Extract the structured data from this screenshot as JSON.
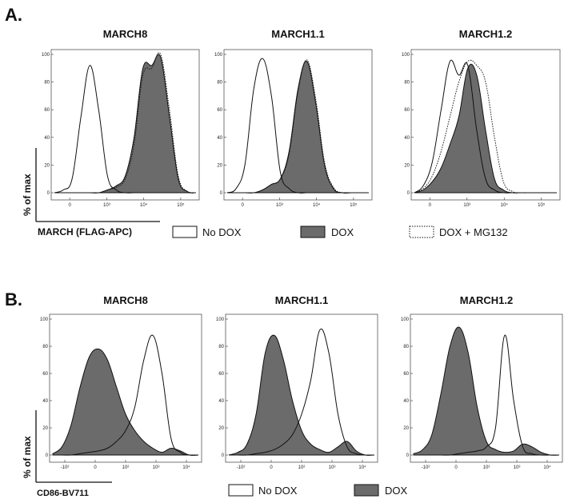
{
  "figure": {
    "panel_a": {
      "label": "A.",
      "ylabel": "% of max",
      "xlabel": "MARCH (FLAG-APC)"
    },
    "panel_b": {
      "label": "B.",
      "ylabel": "% of max",
      "xlabel": "CD86-BV711"
    }
  },
  "legend_a": [
    {
      "label": "No DOX",
      "style": "open"
    },
    {
      "label": "DOX",
      "style": "filled"
    },
    {
      "label": "DOX + MG132",
      "style": "dotted"
    }
  ],
  "legend_b": [
    {
      "label": "No DOX",
      "style": "open"
    },
    {
      "label": "DOX",
      "style": "filled"
    }
  ],
  "colors": {
    "filled": "#6b6b6b",
    "line": "#111111",
    "background": "#ffffff"
  },
  "chart_data": [
    {
      "type": "area",
      "panel": "A",
      "title": "MARCH8",
      "ylim": [
        0,
        100
      ],
      "y_ticks": [
        "0",
        "20",
        "40",
        "60",
        "80",
        "100"
      ],
      "x_ticks": [
        "0",
        "10³",
        "10⁴",
        "10⁵"
      ],
      "x": [
        -0.5,
        -0.25,
        0.0,
        0.25,
        0.5,
        0.75,
        1.0,
        1.25,
        1.5,
        1.75,
        2.0,
        2.25,
        2.5,
        2.75,
        3.0,
        3.25,
        3.5
      ],
      "series": [
        {
          "name": "No DOX",
          "style": "open",
          "values": [
            0,
            2,
            10,
            55,
            92,
            60,
            12,
            2,
            0,
            0,
            0,
            0,
            0,
            0,
            0,
            0,
            0
          ]
        },
        {
          "name": "DOX",
          "style": "filled",
          "values": [
            0,
            0,
            0,
            0,
            0,
            0,
            2,
            5,
            12,
            40,
            90,
            92,
            98,
            55,
            10,
            1,
            0
          ]
        },
        {
          "name": "DOX + MG132",
          "style": "dotted",
          "values": [
            0,
            0,
            0,
            0,
            0,
            0,
            2,
            4,
            10,
            35,
            85,
            90,
            100,
            60,
            12,
            1,
            0
          ]
        }
      ]
    },
    {
      "type": "area",
      "panel": "A",
      "title": "MARCH1.1",
      "ylim": [
        0,
        100
      ],
      "y_ticks": [
        "0",
        "20",
        "40",
        "60",
        "80",
        "100"
      ],
      "x_ticks": [
        "0",
        "10³",
        "10⁴",
        "10⁵"
      ],
      "x": [
        -0.5,
        -0.25,
        0.0,
        0.25,
        0.5,
        0.75,
        1.0,
        1.25,
        1.5,
        1.75,
        2.0,
        2.25,
        2.5,
        2.75,
        3.0,
        3.25,
        3.5
      ],
      "series": [
        {
          "name": "No DOX",
          "style": "open",
          "values": [
            0,
            3,
            20,
            75,
            97,
            70,
            15,
            3,
            0,
            0,
            0,
            0,
            0,
            0,
            0,
            0,
            0
          ]
        },
        {
          "name": "DOX",
          "style": "filled",
          "values": [
            0,
            0,
            0,
            0,
            2,
            6,
            10,
            30,
            75,
            95,
            65,
            20,
            3,
            0,
            0,
            0,
            0
          ]
        },
        {
          "name": "DOX + MG132",
          "style": "dotted",
          "values": [
            0,
            0,
            0,
            0,
            2,
            6,
            10,
            28,
            73,
            96,
            68,
            22,
            4,
            0,
            0,
            0,
            0
          ]
        }
      ]
    },
    {
      "type": "area",
      "panel": "A",
      "title": "MARCH1.2",
      "ylim": [
        0,
        100
      ],
      "y_ticks": [
        "0",
        "20",
        "40",
        "60",
        "80",
        "100"
      ],
      "x_ticks": [
        "0",
        "10³",
        "10⁴",
        "10⁵"
      ],
      "x": [
        -0.5,
        -0.25,
        0.0,
        0.25,
        0.5,
        0.75,
        1.0,
        1.25,
        1.5,
        1.75,
        2.0,
        2.25,
        2.5,
        2.75,
        3.0,
        3.25,
        3.5
      ],
      "series": [
        {
          "name": "No DOX",
          "style": "open",
          "values": [
            0,
            5,
            22,
            60,
            95,
            85,
            92,
            45,
            10,
            2,
            0,
            0,
            0,
            0,
            0,
            0,
            0
          ]
        },
        {
          "name": "DOX",
          "style": "filled",
          "values": [
            0,
            2,
            8,
            18,
            35,
            55,
            90,
            85,
            45,
            10,
            2,
            0,
            0,
            0,
            0,
            0,
            0
          ]
        },
        {
          "name": "DOX + MG132",
          "style": "dotted",
          "values": [
            0,
            3,
            12,
            30,
            55,
            80,
            95,
            92,
            80,
            40,
            8,
            1,
            0,
            0,
            0,
            0,
            0
          ]
        }
      ]
    },
    {
      "type": "area",
      "panel": "B",
      "title": "MARCH8",
      "ylim": [
        0,
        100
      ],
      "y_ticks": [
        "0",
        "20",
        "40",
        "60",
        "80",
        "100"
      ],
      "x_ticks": [
        "-10²",
        "0",
        "10²",
        "10³",
        "10⁴"
      ],
      "x": [
        -1.0,
        -0.75,
        -0.5,
        -0.25,
        0.0,
        0.25,
        0.5,
        0.75,
        1.0,
        1.25,
        1.5,
        1.75,
        2.0,
        2.25,
        2.5,
        2.75,
        3.0
      ],
      "series": [
        {
          "name": "DOX",
          "style": "filled",
          "values": [
            1,
            6,
            22,
            50,
            72,
            78,
            70,
            50,
            30,
            18,
            10,
            5,
            2,
            5,
            3,
            0,
            0
          ]
        },
        {
          "name": "No DOX",
          "style": "open",
          "values": [
            0,
            0,
            0,
            1,
            2,
            3,
            5,
            10,
            18,
            35,
            70,
            88,
            60,
            12,
            2,
            0,
            0
          ]
        }
      ]
    },
    {
      "type": "area",
      "panel": "B",
      "title": "MARCH1.1",
      "ylim": [
        0,
        100
      ],
      "y_ticks": [
        "0",
        "20",
        "40",
        "60",
        "80",
        "100"
      ],
      "x_ticks": [
        "-10²",
        "0",
        "10²",
        "10³",
        "10⁴"
      ],
      "x": [
        -1.0,
        -0.75,
        -0.5,
        -0.25,
        0.0,
        0.25,
        0.5,
        0.75,
        1.0,
        1.25,
        1.5,
        1.75,
        2.0,
        2.25,
        2.5,
        2.75,
        3.0
      ],
      "series": [
        {
          "name": "DOX",
          "style": "filled",
          "values": [
            0,
            2,
            8,
            30,
            75,
            88,
            70,
            40,
            18,
            8,
            4,
            2,
            6,
            10,
            3,
            0,
            0
          ]
        },
        {
          "name": "No DOX",
          "style": "open",
          "values": [
            0,
            0,
            0,
            1,
            2,
            4,
            8,
            15,
            30,
            55,
            92,
            75,
            30,
            6,
            1,
            0,
            0
          ]
        }
      ]
    },
    {
      "type": "area",
      "panel": "B",
      "title": "MARCH1.2",
      "ylim": [
        0,
        100
      ],
      "y_ticks": [
        "0",
        "20",
        "40",
        "60",
        "80",
        "100"
      ],
      "x_ticks": [
        "-10²",
        "0",
        "10²",
        "10³",
        "10⁴"
      ],
      "x": [
        -1.0,
        -0.75,
        -0.5,
        -0.25,
        0.0,
        0.25,
        0.5,
        0.75,
        1.0,
        1.25,
        1.5,
        1.75,
        2.0,
        2.25,
        2.5,
        2.75,
        3.0
      ],
      "series": [
        {
          "name": "DOX",
          "style": "filled",
          "values": [
            1,
            4,
            15,
            45,
            80,
            94,
            75,
            35,
            10,
            4,
            2,
            3,
            8,
            6,
            2,
            0,
            0
          ]
        },
        {
          "name": "No DOX",
          "style": "open",
          "values": [
            0,
            0,
            0,
            0,
            0,
            1,
            2,
            3,
            6,
            20,
            88,
            40,
            6,
            1,
            0,
            0,
            0
          ]
        }
      ]
    }
  ]
}
